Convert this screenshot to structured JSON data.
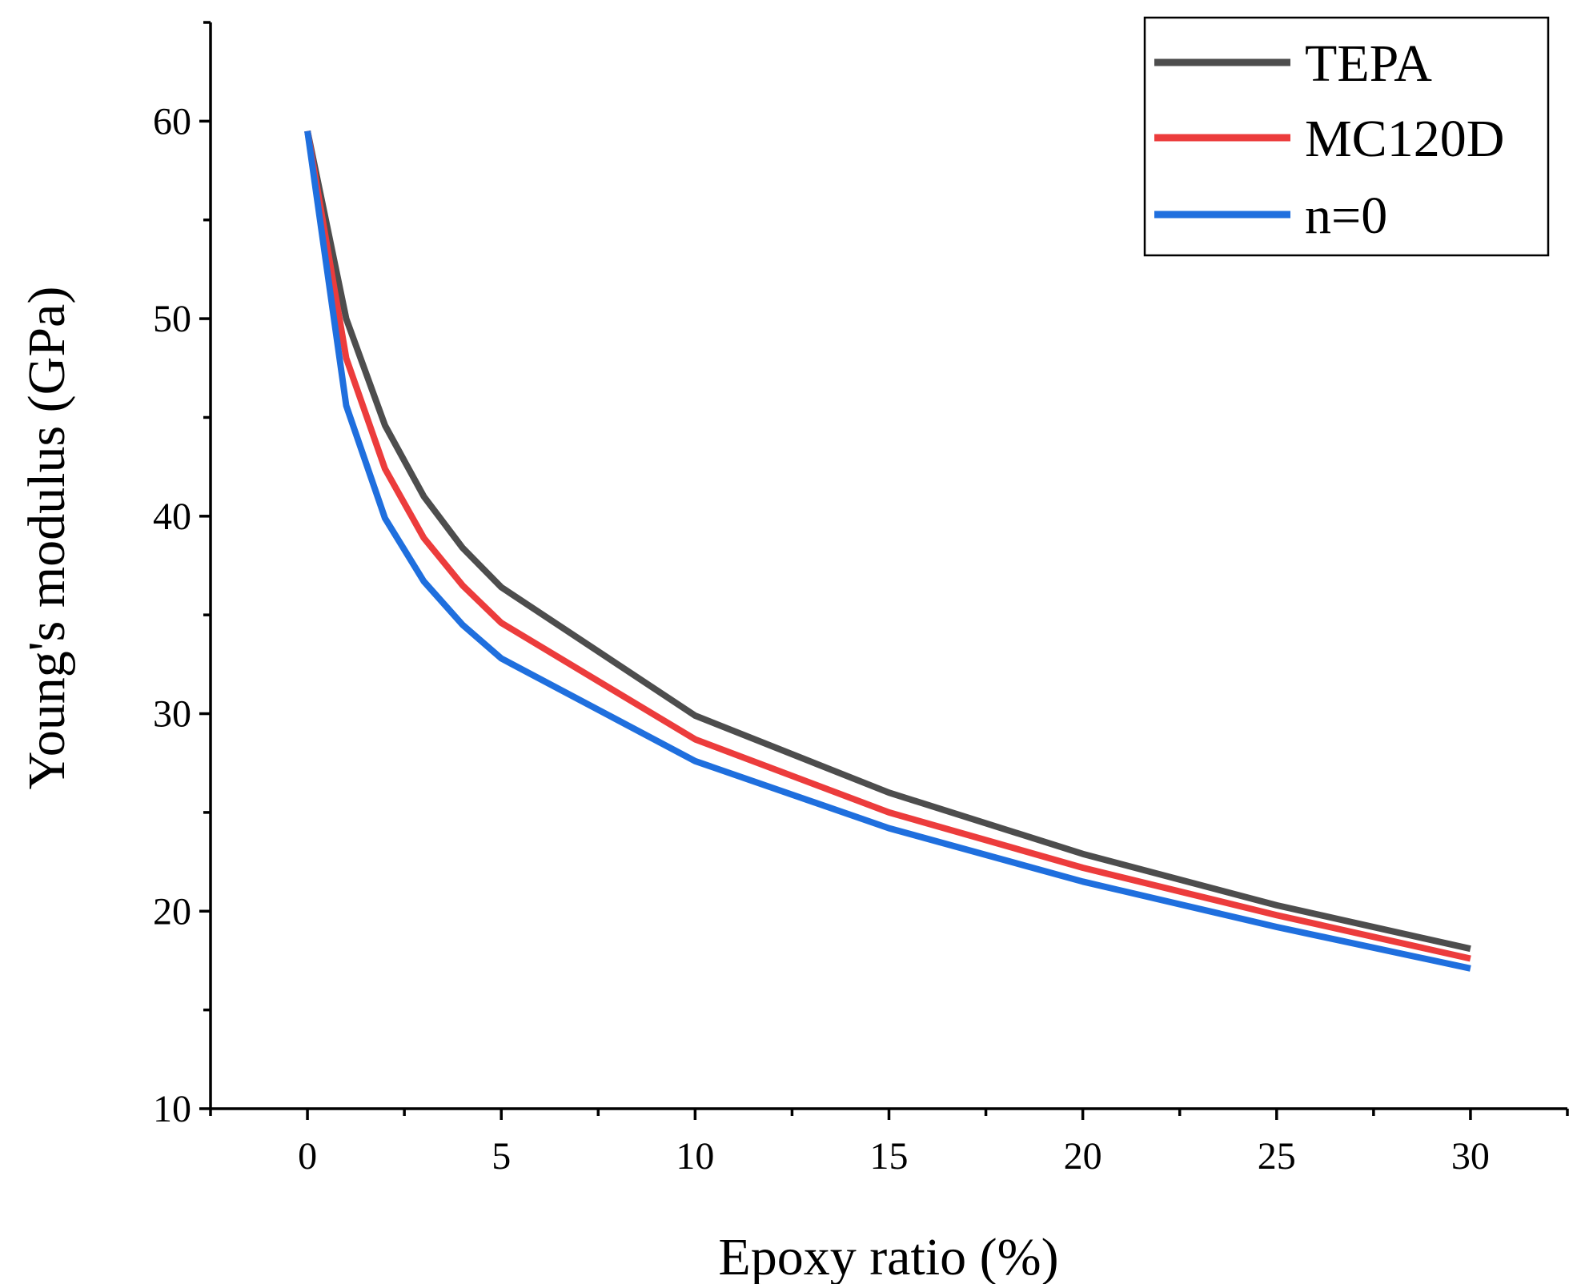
{
  "chart_data": {
    "type": "line",
    "title": "",
    "xlabel": "Epoxy ratio (%)",
    "ylabel": "Young's modulus (GPa)",
    "xlim": [
      -2.5,
      32.5
    ],
    "ylim": [
      10,
      65
    ],
    "x_ticks": [
      0,
      5,
      10,
      15,
      20,
      25,
      30
    ],
    "x_tick_labels": [
      "0",
      "5",
      "10",
      "15",
      "20",
      "25",
      "30"
    ],
    "y_ticks": [
      10,
      20,
      30,
      40,
      50,
      60
    ],
    "y_tick_labels": [
      "10",
      "20",
      "30",
      "40",
      "50",
      "60"
    ],
    "grid": false,
    "legend_position": "top-right",
    "series": [
      {
        "name": "TEPA",
        "color": "#4d4d4d",
        "x": [
          0,
          1,
          2,
          3,
          4,
          5,
          10,
          15,
          20,
          25,
          30
        ],
        "values": [
          59.5,
          50.0,
          44.6,
          41.0,
          38.4,
          36.4,
          29.9,
          26.0,
          22.9,
          20.3,
          18.1
        ]
      },
      {
        "name": "MC120D",
        "color": "#ec3c3c",
        "x": [
          0,
          1,
          2,
          3,
          4,
          5,
          10,
          15,
          20,
          25,
          30
        ],
        "values": [
          59.5,
          48.0,
          42.4,
          38.9,
          36.5,
          34.6,
          28.7,
          25.0,
          22.2,
          19.8,
          17.6
        ]
      },
      {
        "name": "n=0",
        "color": "#1f6fde",
        "x": [
          0,
          1,
          2,
          3,
          4,
          5,
          10,
          15,
          20,
          25,
          30
        ],
        "values": [
          59.5,
          45.6,
          39.9,
          36.7,
          34.5,
          32.8,
          27.6,
          24.2,
          21.5,
          19.2,
          17.1
        ]
      }
    ]
  }
}
